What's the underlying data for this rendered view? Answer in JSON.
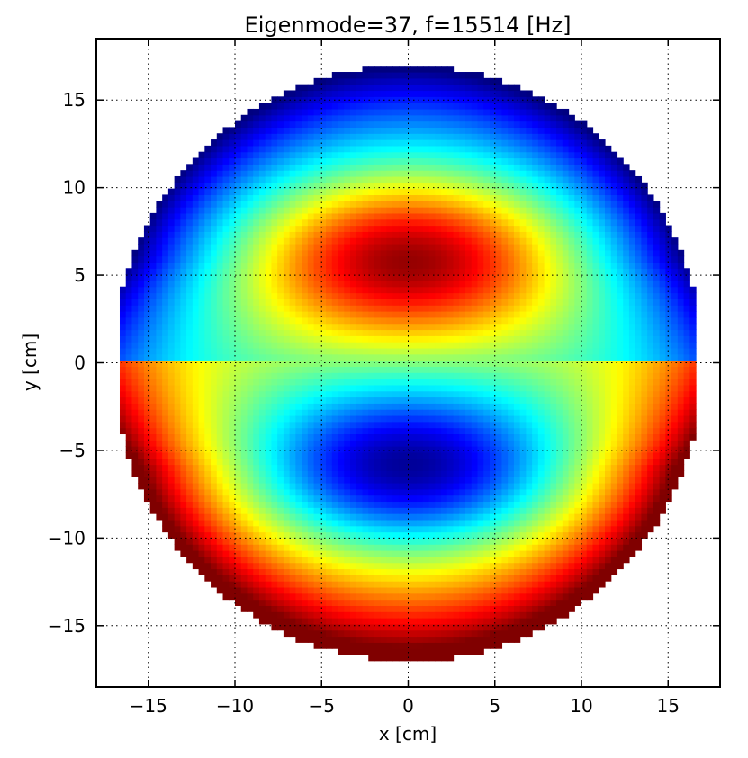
{
  "chart_data": {
    "type": "heatmap",
    "title": "Eigenmode=37, f=15514 [Hz]",
    "xlabel": "x [cm]",
    "ylabel": "y [cm]",
    "xlim": [
      -18,
      18
    ],
    "ylim": [
      -18.5,
      18.5
    ],
    "xticks": [
      -15,
      -10,
      -5,
      0,
      5,
      10,
      15
    ],
    "yticks": [
      -15,
      -10,
      -5,
      0,
      5,
      10,
      15
    ],
    "xtick_labels": [
      "−15",
      "−10",
      "−5",
      "0",
      "5",
      "10",
      "15"
    ],
    "ytick_labels": [
      "−15",
      "−10",
      "−5",
      "0",
      "5",
      "10",
      "15"
    ],
    "grid": true,
    "colormap": "jet",
    "domain": {
      "shape": "circle",
      "radius": 17,
      "flat_sides_at_x": [
        -16.5,
        16.5
      ]
    },
    "field": {
      "description_values": "normalized mode amplitude, 1 = dark red max, 0 = dark blue min",
      "max_at": [
        0,
        6
      ],
      "min_at": [
        0,
        -6
      ],
      "top_edge_value": 0.1,
      "bottom_edge_value": 0.95
    }
  }
}
